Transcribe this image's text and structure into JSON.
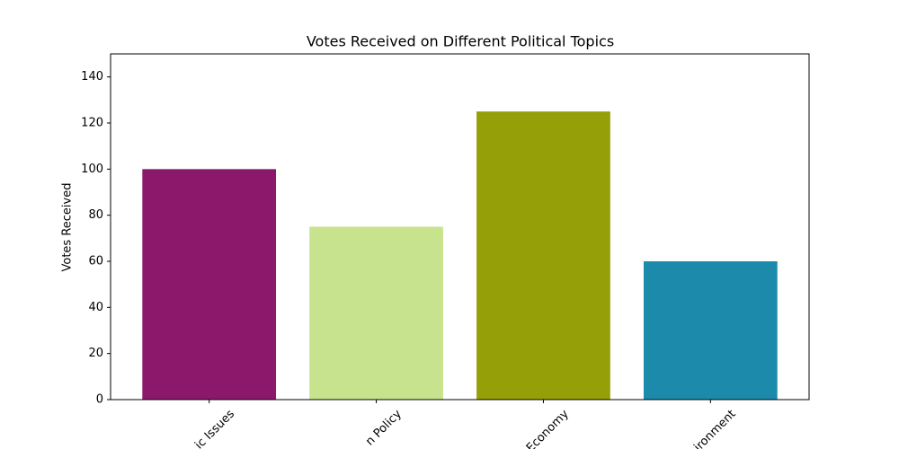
{
  "chart_data": {
    "type": "bar",
    "title": "Votes Received on Different Political Topics",
    "y_label": "Votes Received",
    "categories": [
      "ic Issues",
      "n Policy",
      "Economy",
      "ironment"
    ],
    "values": [
      100,
      75,
      125,
      60
    ],
    "colors": [
      "#8b186b",
      "#c7e38d",
      "#959f07",
      "#1b8aab"
    ],
    "ylim": [
      0,
      150
    ],
    "yticks": [
      0,
      20,
      40,
      60,
      80,
      100,
      120,
      140
    ]
  }
}
